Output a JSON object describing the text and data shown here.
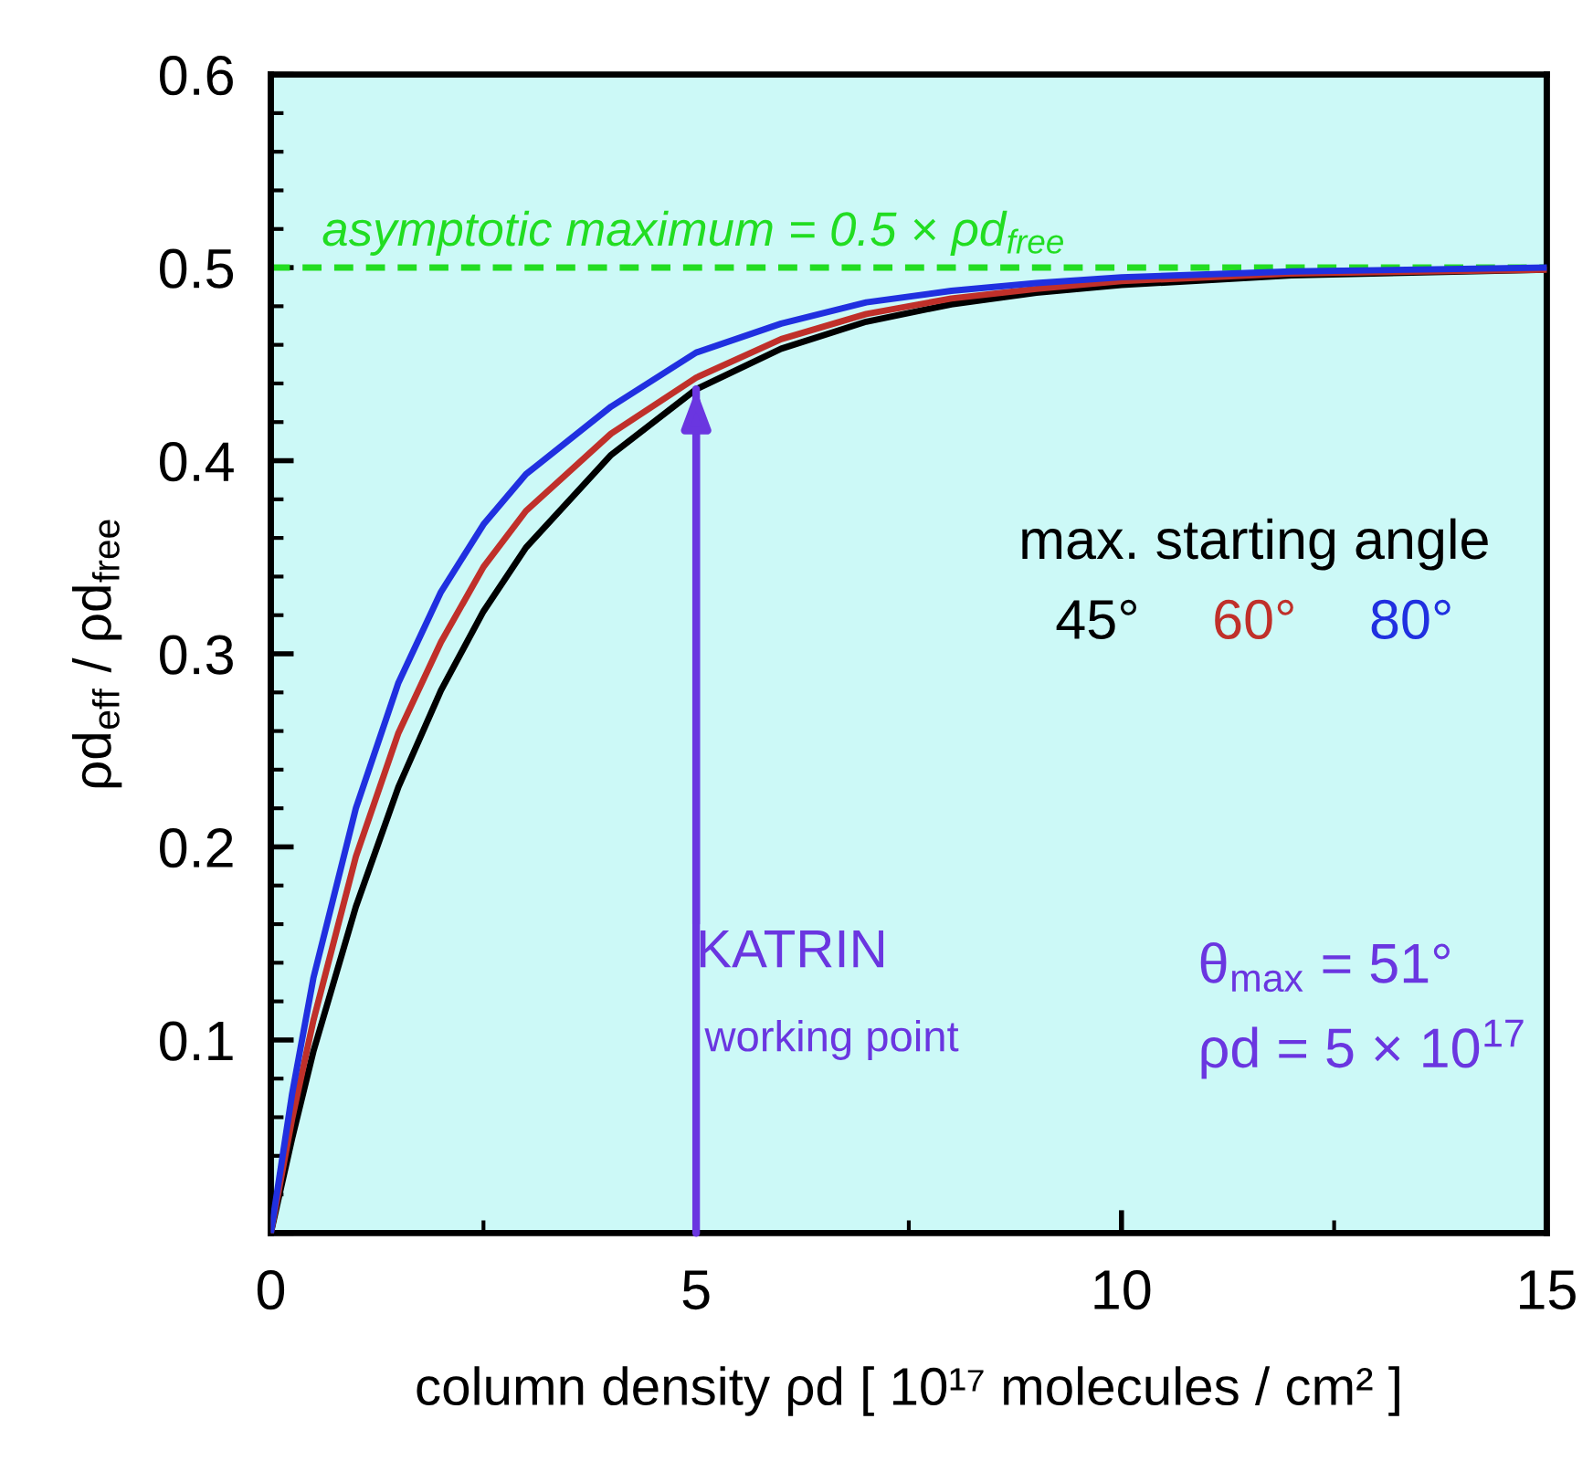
{
  "chart_data": {
    "type": "line",
    "xlabel": "column density ρd [ 10¹⁷ molecules / cm² ]",
    "ylabel": "ρd$_{eff}$ / ρd$_{free}$",
    "legend_title": "max. starting angle",
    "legend": "right",
    "x": [
      0,
      0.25,
      0.5,
      1,
      1.5,
      2,
      2.5,
      3,
      4,
      5,
      6,
      7,
      8,
      9,
      10,
      12,
      15
    ],
    "series": [
      {
        "name": "45°",
        "color": "#000000",
        "values": [
          0,
          0.049,
          0.094,
          0.169,
          0.231,
          0.281,
          0.322,
          0.355,
          0.403,
          0.437,
          0.458,
          0.472,
          0.481,
          0.487,
          0.491,
          0.496,
          0.499
        ]
      },
      {
        "name": "60°",
        "color": "#c0302a",
        "values": [
          0,
          0.059,
          0.11,
          0.195,
          0.259,
          0.306,
          0.345,
          0.374,
          0.414,
          0.443,
          0.463,
          0.476,
          0.484,
          0.489,
          0.493,
          0.497,
          0.499
        ]
      },
      {
        "name": "80°",
        "color": "#2030e0",
        "values": [
          0,
          0.072,
          0.132,
          0.22,
          0.285,
          0.332,
          0.367,
          0.393,
          0.428,
          0.456,
          0.471,
          0.482,
          0.488,
          0.492,
          0.495,
          0.498,
          0.5
        ]
      }
    ],
    "xlim": [
      0,
      15
    ],
    "xticks": [
      0,
      5,
      10,
      15
    ],
    "ylim": [
      0,
      0.6
    ],
    "yticks": [
      {
        "value": 0,
        "label": null
      },
      0.1,
      0.2,
      0.3,
      0.4,
      0.5,
      0.6
    ],
    "ref_lines": [
      {
        "axis": "y",
        "value": 0.5,
        "label": "asymptotic maximum = 0.5 × ρd$_{free}$",
        "color": "#22dd22",
        "line_style": "dashed"
      }
    ],
    "annotations": [
      {
        "text": "KATRIN",
        "x": 5,
        "y": 0.437
      },
      "working point",
      "θ$_{max}$ = 51°",
      "ρd = 5 × 10$^{17}$"
    ],
    "grid": false,
    "marker": "none",
    "line_style": "solid"
  }
}
